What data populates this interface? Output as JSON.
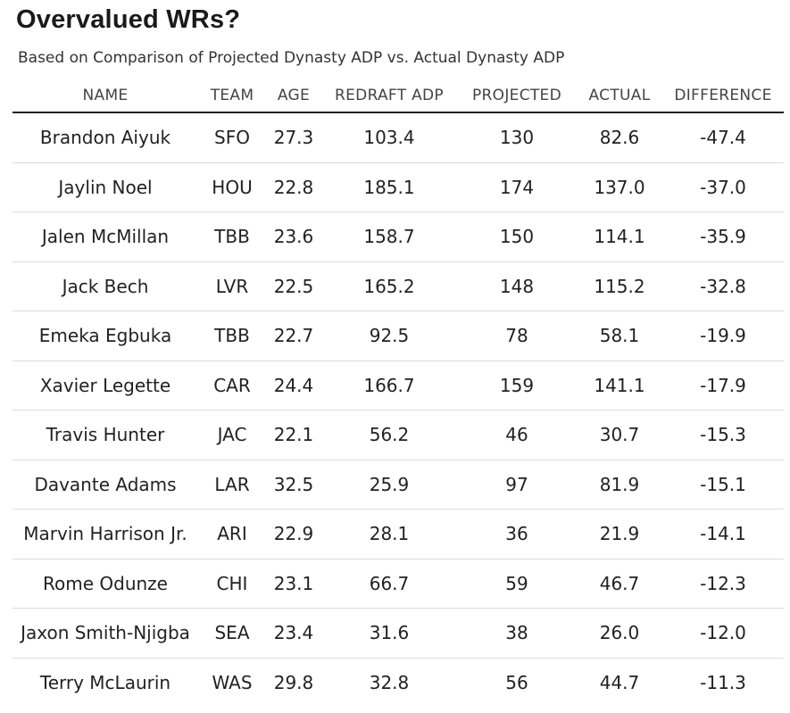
{
  "title": "Overvalued WRs?",
  "subtitle": "Based on Comparison of Projected Dynasty ADP vs. Actual Dynasty ADP",
  "columns": {
    "name": "NAME",
    "team": "TEAM",
    "age": "AGE",
    "redraft": "REDRAFT ADP",
    "projected": "PROJECTED",
    "actual": "ACTUAL",
    "difference": "DIFFERENCE"
  },
  "rows": [
    {
      "name": "Brandon Aiyuk",
      "team": "SFO",
      "age": "27.3",
      "redraft": "103.4",
      "projected": "130",
      "actual": "82.6",
      "difference": "-47.4"
    },
    {
      "name": "Jaylin Noel",
      "team": "HOU",
      "age": "22.8",
      "redraft": "185.1",
      "projected": "174",
      "actual": "137.0",
      "difference": "-37.0"
    },
    {
      "name": "Jalen McMillan",
      "team": "TBB",
      "age": "23.6",
      "redraft": "158.7",
      "projected": "150",
      "actual": "114.1",
      "difference": "-35.9"
    },
    {
      "name": "Jack Bech",
      "team": "LVR",
      "age": "22.5",
      "redraft": "165.2",
      "projected": "148",
      "actual": "115.2",
      "difference": "-32.8"
    },
    {
      "name": "Emeka Egbuka",
      "team": "TBB",
      "age": "22.7",
      "redraft": "92.5",
      "projected": "78",
      "actual": "58.1",
      "difference": "-19.9"
    },
    {
      "name": "Xavier Legette",
      "team": "CAR",
      "age": "24.4",
      "redraft": "166.7",
      "projected": "159",
      "actual": "141.1",
      "difference": "-17.9"
    },
    {
      "name": "Travis Hunter",
      "team": "JAC",
      "age": "22.1",
      "redraft": "56.2",
      "projected": "46",
      "actual": "30.7",
      "difference": "-15.3"
    },
    {
      "name": "Davante Adams",
      "team": "LAR",
      "age": "32.5",
      "redraft": "25.9",
      "projected": "97",
      "actual": "81.9",
      "difference": "-15.1"
    },
    {
      "name": "Marvin Harrison Jr.",
      "team": "ARI",
      "age": "22.9",
      "redraft": "28.1",
      "projected": "36",
      "actual": "21.9",
      "difference": "-14.1"
    },
    {
      "name": "Rome Odunze",
      "team": "CHI",
      "age": "23.1",
      "redraft": "66.7",
      "projected": "59",
      "actual": "46.7",
      "difference": "-12.3"
    },
    {
      "name": "Jaxon Smith-Njigba",
      "team": "SEA",
      "age": "23.4",
      "redraft": "31.6",
      "projected": "38",
      "actual": "26.0",
      "difference": "-12.0"
    },
    {
      "name": "Terry McLaurin",
      "team": "WAS",
      "age": "29.8",
      "redraft": "32.8",
      "projected": "56",
      "actual": "44.7",
      "difference": "-11.3"
    }
  ]
}
